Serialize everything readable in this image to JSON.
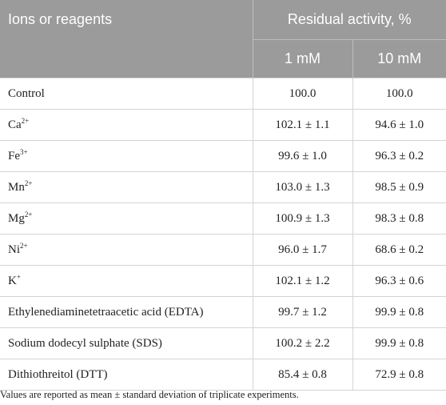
{
  "header": {
    "col1": "Ions or reagents",
    "group": "Residual activity, %",
    "sub1": "1 mM",
    "sub2": "10 mM"
  },
  "rows": [
    {
      "name": "Control",
      "sup": "",
      "v1": "100.0",
      "v2": "100.0"
    },
    {
      "name": "Ca",
      "sup": "2+",
      "v1": "102.1 ± 1.1",
      "v2": "94.6 ± 1.0"
    },
    {
      "name": "Fe",
      "sup": "3+",
      "v1": "99.6 ± 1.0",
      "v2": "96.3 ± 0.2"
    },
    {
      "name": "Mn",
      "sup": "2+",
      "v1": "103.0 ± 1.3",
      "v2": "98.5 ± 0.9"
    },
    {
      "name": "Mg",
      "sup": "2+",
      "v1": "100.9 ± 1.3",
      "v2": "98.3 ± 0.8"
    },
    {
      "name": "Ni",
      "sup": "2+",
      "v1": "96.0 ± 1.7",
      "v2": "68.6 ± 0.2"
    },
    {
      "name": "K",
      "sup": "+",
      "v1": "102.1 ± 1.2",
      "v2": "96.3 ± 0.6"
    },
    {
      "name": "Ethylenediaminetetraacetic acid (EDTA)",
      "sup": "",
      "v1": "99.7 ± 1.2",
      "v2": "99.9 ± 0.8"
    },
    {
      "name": "Sodium dodecyl sulphate (SDS)",
      "sup": "",
      "v1": "100.2 ± 2.2",
      "v2": "99.9 ± 0.8"
    },
    {
      "name": "Dithiothreitol (DTT)",
      "sup": "",
      "v1": "85.4 ± 0.8",
      "v2": "72.9 ± 0.8"
    }
  ],
  "footnote": "Values are reported as mean ± standard deviation of triplicate experiments.",
  "colors": {
    "header_bg": "#9b9b9b",
    "header_text": "#ffffff",
    "rule": "#d4d4d4"
  }
}
